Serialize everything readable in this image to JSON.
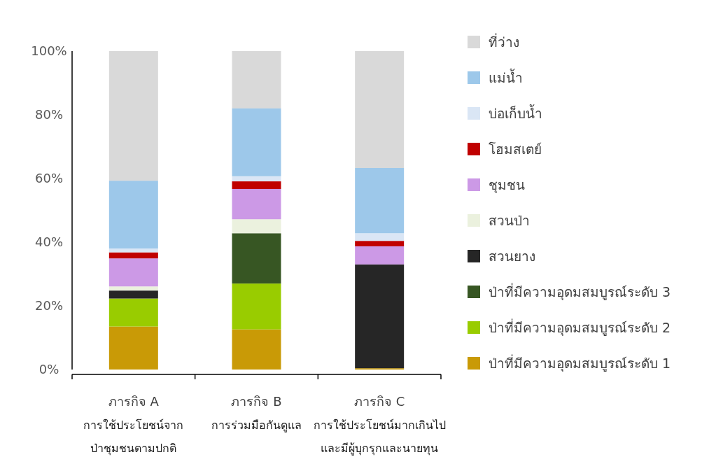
{
  "chart_data": {
    "type": "bar",
    "stacked": true,
    "legend": "right",
    "grid": false,
    "categories": [
      "ภารกิจ A\nการใช้ประโยชน์จาก\nป่าชุมชนตามปกติ",
      "ภารกิจ B\nการร่วมมือกันดูแล",
      "ภารกิจ C\nการใช้ประโยชน์มากเกินไป\nและมีผู้บุกรุกและนายทุน"
    ],
    "ylim": [
      0,
      100
    ],
    "yticks": [
      {
        "value": 0,
        "label": "0%"
      },
      {
        "value": 20,
        "label": "20%"
      },
      {
        "value": 40,
        "label": "40%"
      },
      {
        "value": 60,
        "label": "60%"
      },
      {
        "value": 80,
        "label": "80%"
      },
      {
        "value": 100,
        "label": "100%"
      }
    ],
    "series": [
      {
        "name": "ป่าที่มีความอุดมสมบูรณ์ระดับ 1",
        "color": "#c99a06",
        "values": [
          13.5,
          12.6,
          0.4
        ]
      },
      {
        "name": "ป่าที่มีความอุดมสมบูรณ์ระดับ 2",
        "color": "#99cc00",
        "values": [
          8.8,
          14.4,
          0
        ]
      },
      {
        "name": "ป่าที่มีความอุดมสมบูรณ์ระดับ 3",
        "color": "#375623",
        "values": [
          0,
          15.8,
          0
        ]
      },
      {
        "name": "สวนยาง",
        "color": "#262626",
        "values": [
          2.5,
          0,
          32.6
        ]
      },
      {
        "name": "สวนป่า",
        "color": "#ebf1de",
        "values": [
          1.3,
          4.4,
          0
        ]
      },
      {
        "name": "ชุมชน",
        "color": "#cc99e6",
        "values": [
          8.8,
          9.5,
          5.7
        ]
      },
      {
        "name": "โฮมสเตย์",
        "color": "#c00000",
        "values": [
          1.9,
          2.4,
          1.7
        ]
      },
      {
        "name": "บ่อเก็บน้ำ",
        "color": "#dae6f5",
        "values": [
          1.2,
          1.6,
          2.4
        ]
      },
      {
        "name": "แม่น้ำ",
        "color": "#9dc8ea",
        "values": [
          21.3,
          21.3,
          20.5
        ]
      },
      {
        "name": "ที่ว่าง",
        "color": "#d9d9d9",
        "values": [
          40.7,
          18.0,
          36.7
        ]
      }
    ]
  }
}
